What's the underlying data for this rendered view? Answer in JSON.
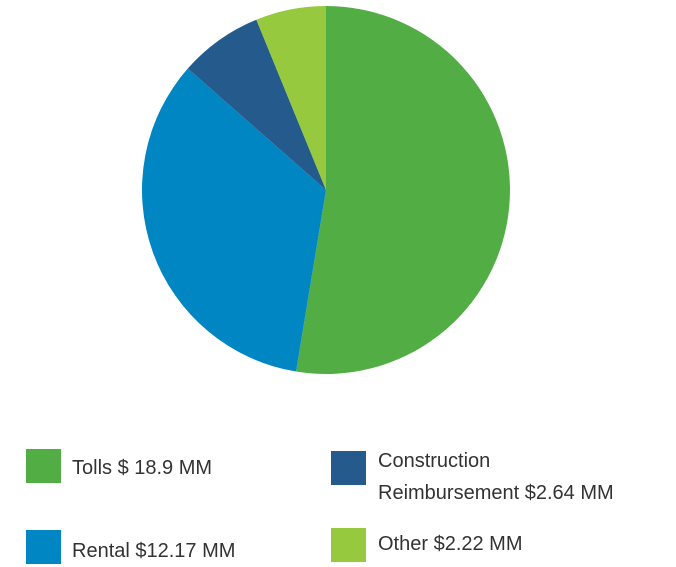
{
  "chart_data": {
    "type": "pie",
    "categories": [
      "Tolls $ 18.9 MM",
      "Rental $12.17 MM",
      "Construction Reimbursement $2.64 MM",
      "Other $2.22 MM"
    ],
    "values": [
      18.9,
      12.17,
      2.64,
      2.22
    ],
    "colors": [
      "#52ae44",
      "#0087c3",
      "#255b8c",
      "#96c93d"
    ]
  }
}
